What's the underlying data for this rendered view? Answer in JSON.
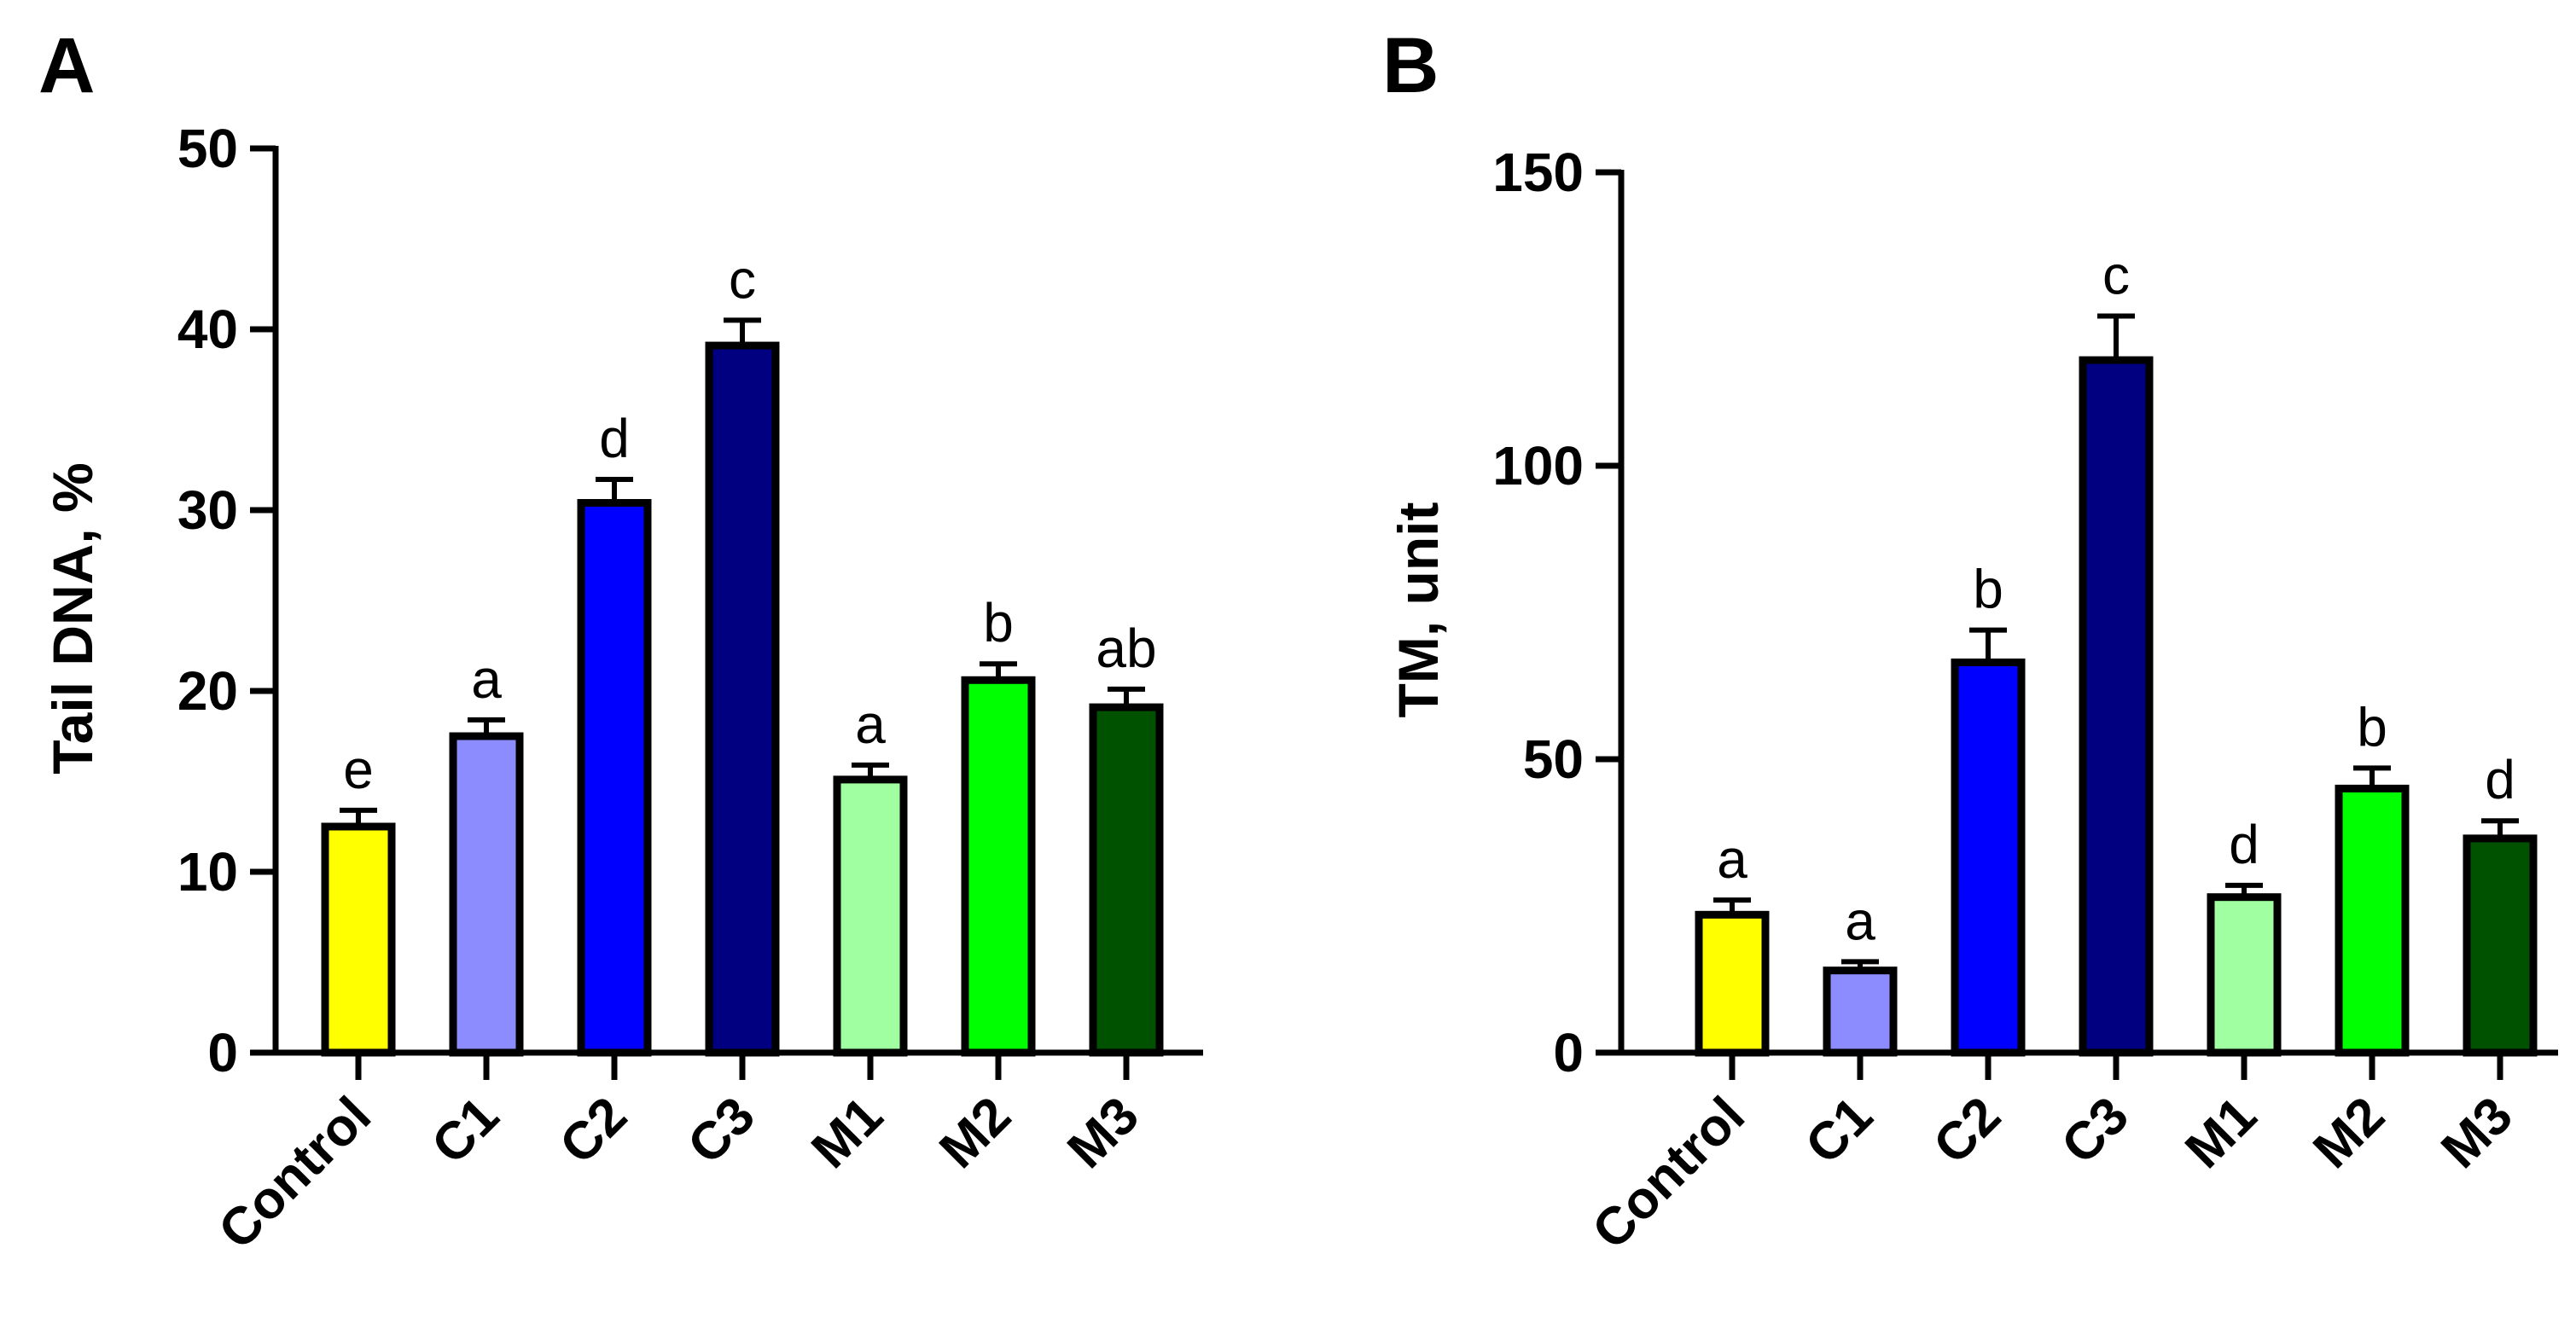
{
  "chart_data": [
    {
      "type": "bar",
      "panel": "A",
      "title": "",
      "xlabel": "",
      "ylabel": "Tail DNA, %",
      "ylim": [
        0,
        50
      ],
      "yticks": [
        0,
        10,
        20,
        30,
        40,
        50
      ],
      "categories": [
        "Control",
        "C1",
        "C2",
        "C3",
        "M1",
        "M2",
        "M3"
      ],
      "values": [
        12.5,
        17.5,
        30.4,
        39.1,
        15.1,
        20.6,
        19.1
      ],
      "errors": [
        0.9,
        0.9,
        1.3,
        1.4,
        0.8,
        0.9,
        1.0
      ],
      "significance": [
        "e",
        "a",
        "d",
        "c",
        "a",
        "b",
        "ab"
      ],
      "colors": [
        "#ffff00",
        "#8c8cff",
        "#0000ff",
        "#000080",
        "#a0ffa0",
        "#00ff00",
        "#005200"
      ]
    },
    {
      "type": "bar",
      "panel": "B",
      "title": "",
      "xlabel": "",
      "ylabel": "TM, unit",
      "ylim": [
        0,
        150
      ],
      "yticks": [
        0,
        50,
        100,
        150
      ],
      "categories": [
        "Control",
        "C1",
        "C2",
        "C3",
        "M1",
        "M2",
        "M3"
      ],
      "values": [
        23.5,
        14,
        66.5,
        118,
        26.5,
        45,
        36.5
      ],
      "errors": [
        2.5,
        1.5,
        5.5,
        7.5,
        2,
        3.5,
        3
      ],
      "significance": [
        "a",
        "a",
        "b",
        "c",
        "d",
        "b",
        "d"
      ],
      "colors": [
        "#ffff00",
        "#8c8cff",
        "#0000ff",
        "#000080",
        "#a0ffa0",
        "#00ff00",
        "#005200"
      ]
    }
  ]
}
